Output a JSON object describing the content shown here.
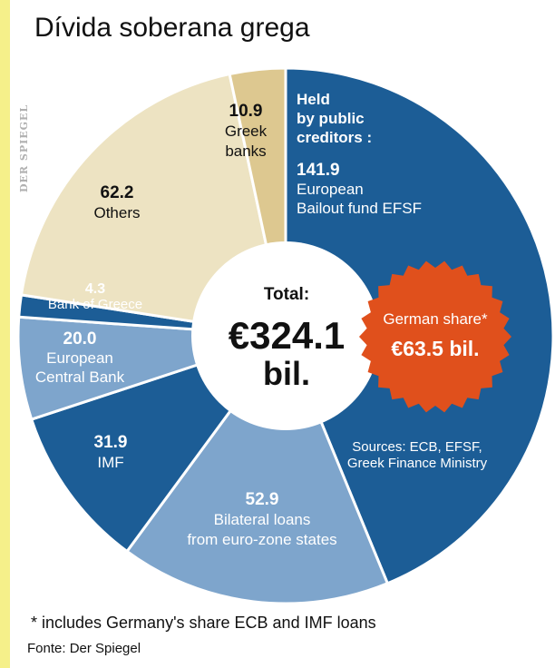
{
  "page": {
    "title": "Dívida soberana grega",
    "watermark": "DER SPIEGEL",
    "footnote": "* includes Germany's share ECB and IMF loans",
    "source_note": "Fonte: Der Spiegel"
  },
  "chart_data": {
    "type": "pie",
    "subtype": "donut",
    "title": "Dívida soberana grega",
    "total_label": "Total:",
    "total_value": "€324.1",
    "total_unit": "bil.",
    "unit": "€ bil.",
    "slices": [
      {
        "value": 141.9,
        "value_text": "141.9",
        "label_lines": [
          "European",
          "Bailout fund EFSF"
        ],
        "color": "#1c5d96",
        "text_color": "#ffffff"
      },
      {
        "value": 52.9,
        "value_text": "52.9",
        "label_lines": [
          "Bilateral loans",
          "from euro-zone states"
        ],
        "color": "#7ea5cc",
        "text_color": "#ffffff"
      },
      {
        "value": 31.9,
        "value_text": "31.9",
        "label_lines": [
          "IMF"
        ],
        "color": "#1c5d96",
        "text_color": "#ffffff"
      },
      {
        "value": 20.0,
        "value_text": "20.0",
        "label_lines": [
          "European",
          "Central Bank"
        ],
        "color": "#7ea5cc",
        "text_color": "#ffffff"
      },
      {
        "value": 4.3,
        "value_text": "4.3",
        "label_lines": [
          "Bank of Greece"
        ],
        "color": "#1c5d96",
        "text_color": "#ffffff"
      },
      {
        "value": 62.2,
        "value_text": "62.2",
        "label_lines": [
          "Others"
        ],
        "color": "#ede3c2",
        "text_color": "#111111"
      },
      {
        "value": 10.9,
        "value_text": "10.9",
        "label_lines": [
          "Greek",
          "banks"
        ],
        "color": "#ddc890",
        "text_color": "#111111"
      }
    ],
    "public_creditors_label": [
      "Held",
      "by public",
      "creditors :"
    ],
    "german_share": {
      "label": "German share*",
      "value": "€63.5 bil.",
      "color": "#e0501c"
    },
    "sources_lines": [
      "Sources: ECB, EFSF,",
      "Greek Finance Ministry"
    ]
  }
}
